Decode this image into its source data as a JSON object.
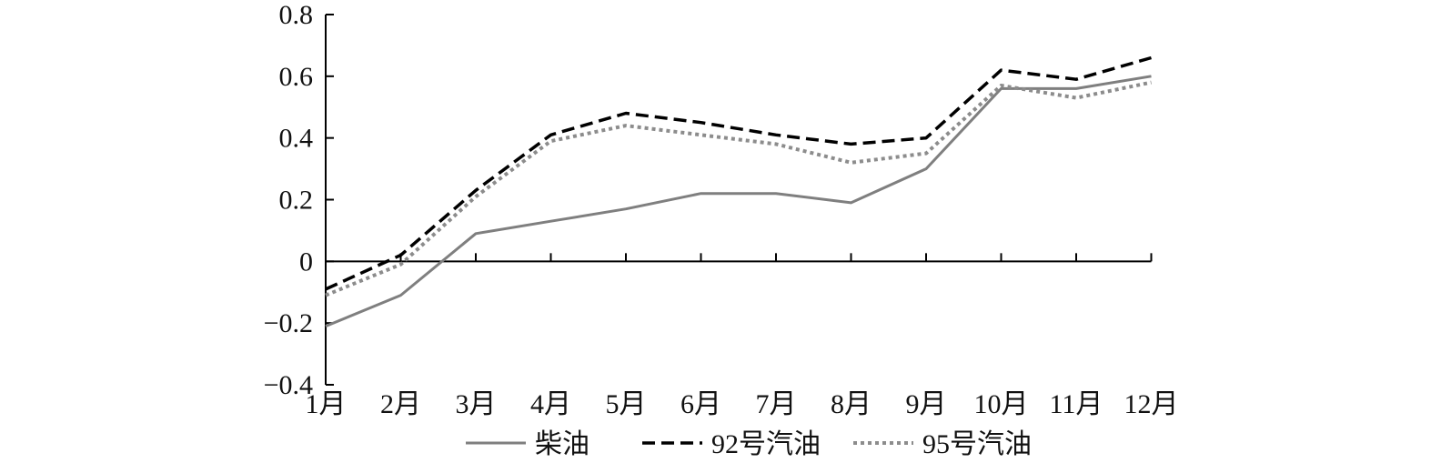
{
  "chart_data": {
    "type": "line",
    "categories": [
      "1月",
      "2月",
      "3月",
      "4月",
      "5月",
      "6月",
      "7月",
      "8月",
      "9月",
      "10月",
      "11月",
      "12月"
    ],
    "y_ticks": [
      "0.8",
      "0.6",
      "0.4",
      "0.2",
      "0",
      "−0.2",
      "−0.4"
    ],
    "y_tick_values": [
      0.8,
      0.6,
      0.4,
      0.2,
      0,
      -0.2,
      -0.4
    ],
    "ylim": [
      -0.4,
      0.8
    ],
    "title": "",
    "xlabel": "",
    "ylabel": "",
    "grid": false,
    "legend_position": "bottom",
    "series": [
      {
        "name": "柴油",
        "style": "solid",
        "color": "#7f7f7f",
        "values": [
          -0.21,
          -0.11,
          0.09,
          0.13,
          0.17,
          0.22,
          0.22,
          0.19,
          0.3,
          0.56,
          0.56,
          0.6
        ]
      },
      {
        "name": "92号汽油",
        "style": "dashed",
        "color": "#000000",
        "values": [
          -0.09,
          0.02,
          0.23,
          0.41,
          0.48,
          0.45,
          0.41,
          0.38,
          0.4,
          0.62,
          0.59,
          0.66
        ]
      },
      {
        "name": "95号汽油",
        "style": "dotted",
        "color": "#8c8c8c",
        "values": [
          -0.11,
          -0.01,
          0.21,
          0.39,
          0.44,
          0.41,
          0.38,
          0.32,
          0.35,
          0.57,
          0.53,
          0.58
        ]
      }
    ]
  }
}
